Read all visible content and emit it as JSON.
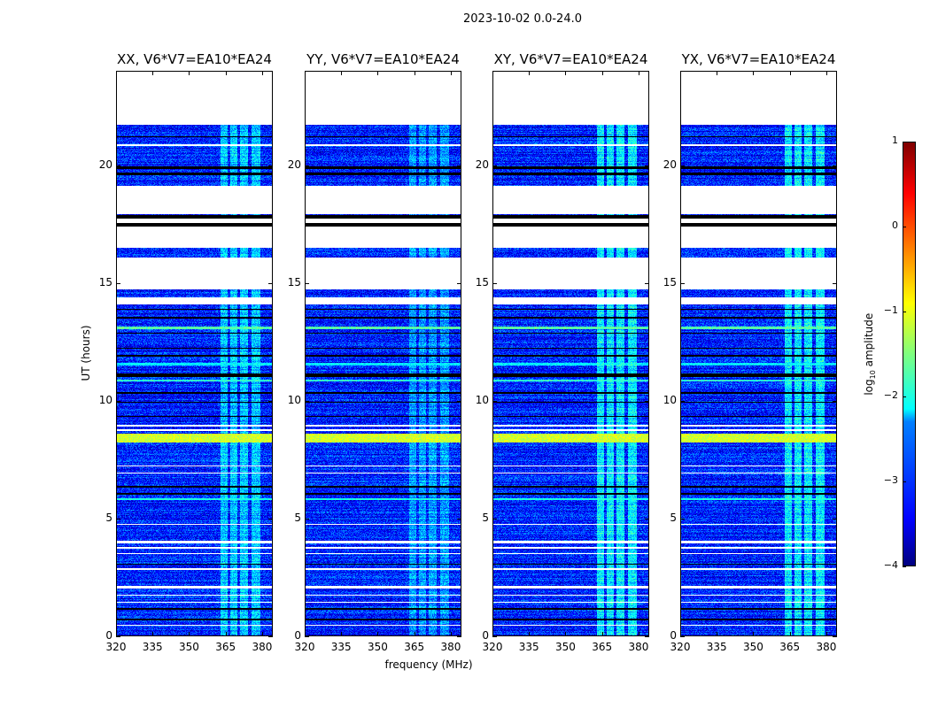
{
  "suptitle": "2023-10-02 0.0-24.0",
  "xlabel": "frequency (MHz)",
  "ylabel": "UT (hours)",
  "colorbar": {
    "label_prefix": "log",
    "label_sub": "10",
    "label_suffix": " amplitude",
    "range": [
      -4,
      1
    ],
    "ticks": [
      "1",
      "0",
      "−1",
      "−2",
      "−3",
      "−4"
    ],
    "tick_values": [
      1,
      0,
      -1,
      -2,
      -3,
      -4
    ],
    "colormap": "jet"
  },
  "chart_data": {
    "type": "heatmap",
    "panels": [
      {
        "title": "XX, V6*V7=EA10*EA24",
        "bright_boost": 1.0
      },
      {
        "title": "YY, V6*V7=EA10*EA24",
        "bright_boost": 1.1
      },
      {
        "title": "XY, V6*V7=EA10*EA24",
        "bright_boost": 0.9
      },
      {
        "title": "YX, V6*V7=EA10*EA24",
        "bright_boost": 0.9
      }
    ],
    "xlim": [
      320,
      384.4
    ],
    "ylim": [
      0,
      24
    ],
    "xticks": [
      320,
      335,
      350,
      365,
      380
    ],
    "yticks": [
      0,
      5,
      10,
      15,
      20
    ],
    "xtick_labels": [
      "320",
      "335",
      "350",
      "365",
      "380"
    ],
    "ytick_labels": [
      "0",
      "5",
      "10",
      "15",
      "20"
    ],
    "background_level": -3.2,
    "rfi_channels_mhz": [
      [
        363,
        366
      ],
      [
        367,
        370
      ],
      [
        371,
        374.5
      ],
      [
        376,
        379.5
      ]
    ],
    "rfi_level": -2.0,
    "row_features": [
      [
        21.75,
        24,
        "empty"
      ],
      [
        21.2,
        21.25,
        "flagged"
      ],
      [
        20.85,
        20.92,
        "empty"
      ],
      [
        19.85,
        19.95,
        "flagged"
      ],
      [
        19.6,
        19.72,
        "flagged"
      ],
      [
        17.95,
        19.15,
        "empty"
      ],
      [
        17.75,
        17.9,
        "flagged"
      ],
      [
        17.55,
        17.75,
        "empty"
      ],
      [
        17.4,
        17.55,
        "flagged"
      ],
      [
        16.5,
        17.4,
        "empty"
      ],
      [
        14.75,
        16.1,
        "empty"
      ],
      [
        14.1,
        14.4,
        "empty"
      ],
      [
        13.85,
        13.9,
        "flagged"
      ],
      [
        13.5,
        13.55,
        "flagged"
      ],
      [
        13.05,
        13.15,
        "level:-1.7"
      ],
      [
        12.85,
        12.9,
        "flagged"
      ],
      [
        12.2,
        12.25,
        "flagged"
      ],
      [
        11.85,
        11.95,
        "flagged"
      ],
      [
        11.5,
        11.6,
        "level:-2.2"
      ],
      [
        11.0,
        11.15,
        "flagged"
      ],
      [
        10.8,
        10.9,
        "level:-1.9"
      ],
      [
        10.3,
        10.35,
        "flagged"
      ],
      [
        9.9,
        9.95,
        "flagged"
      ],
      [
        9.3,
        9.35,
        "flagged"
      ],
      [
        8.9,
        8.97,
        "empty"
      ],
      [
        8.72,
        8.78,
        "empty"
      ],
      [
        8.2,
        8.6,
        "level:-1.1"
      ],
      [
        7.2,
        7.25,
        "empty"
      ],
      [
        6.9,
        6.95,
        "empty"
      ],
      [
        6.3,
        6.35,
        "flagged"
      ],
      [
        6.0,
        6.05,
        "flagged"
      ],
      [
        5.78,
        5.85,
        "level:-2.0"
      ],
      [
        4.7,
        4.75,
        "empty"
      ],
      [
        3.9,
        4.02,
        "empty"
      ],
      [
        3.7,
        3.75,
        "empty"
      ],
      [
        3.45,
        3.5,
        "empty"
      ],
      [
        3.0,
        3.05,
        "flagged"
      ],
      [
        2.8,
        2.85,
        "empty"
      ],
      [
        2.0,
        2.12,
        "empty"
      ],
      [
        1.7,
        1.75,
        "empty"
      ],
      [
        1.4,
        1.45,
        "empty"
      ],
      [
        1.1,
        1.15,
        "flagged"
      ],
      [
        0.65,
        0.7,
        "flagged"
      ],
      [
        0.4,
        0.45,
        "empty"
      ]
    ]
  }
}
